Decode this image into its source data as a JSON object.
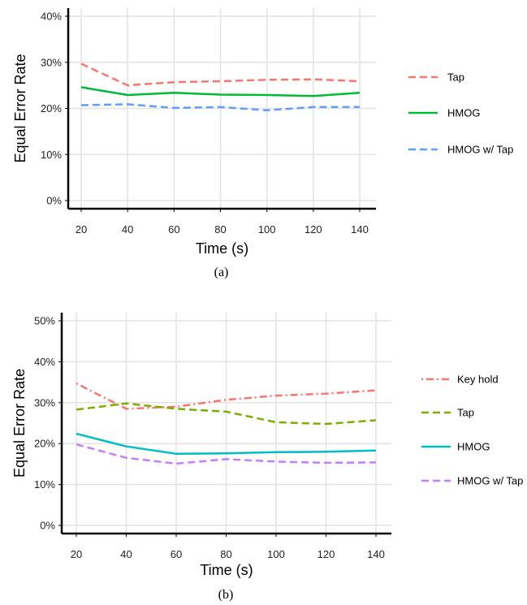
{
  "chart_data": [
    {
      "type": "line",
      "caption": "(a)",
      "xlabel": "Time (s)",
      "ylabel": "Equal Error Rate",
      "x": [
        20,
        40,
        60,
        80,
        100,
        120,
        140
      ],
      "ylim": [
        0,
        40
      ],
      "yticks": [
        "0%",
        "10%",
        "20%",
        "30%",
        "40%"
      ],
      "grid": true,
      "legend_position": "right",
      "series": [
        {
          "name": "Tap",
          "color": "#F8766D",
          "dash": "dashed",
          "values": [
            29.7,
            25.0,
            25.7,
            25.9,
            26.2,
            26.3,
            25.9
          ]
        },
        {
          "name": "HMOG",
          "color": "#00BA38",
          "dash": "solid",
          "values": [
            24.6,
            22.9,
            23.4,
            23.0,
            22.9,
            22.7,
            23.4
          ]
        },
        {
          "name": "HMOG w/ Tap",
          "color": "#619CFF",
          "dash": "dashed",
          "values": [
            20.7,
            20.9,
            20.1,
            20.3,
            19.6,
            20.3,
            20.3
          ]
        }
      ]
    },
    {
      "type": "line",
      "caption": "(b)",
      "xlabel": "Time (s)",
      "ylabel": "Equal Error Rate",
      "x": [
        20,
        40,
        60,
        80,
        100,
        120,
        140
      ],
      "ylim": [
        0,
        50
      ],
      "yticks": [
        "0%",
        "10%",
        "20%",
        "30%",
        "40%",
        "50%"
      ],
      "grid": true,
      "legend_position": "right",
      "series": [
        {
          "name": "Key hold",
          "color": "#F8766D",
          "dash": "dotdash",
          "values": [
            34.7,
            28.5,
            29.0,
            30.7,
            31.7,
            32.2,
            33.0
          ]
        },
        {
          "name": "Tap",
          "color": "#7CAE00",
          "dash": "dashed",
          "values": [
            28.3,
            29.8,
            28.5,
            27.8,
            25.2,
            24.8,
            25.7
          ]
        },
        {
          "name": "HMOG",
          "color": "#00BFC4",
          "dash": "solid",
          "values": [
            22.4,
            19.3,
            17.5,
            17.6,
            17.9,
            18.0,
            18.3
          ]
        },
        {
          "name": "HMOG w/ Tap",
          "color": "#C77CFF",
          "dash": "dashed",
          "values": [
            19.8,
            16.5,
            15.1,
            16.2,
            15.6,
            15.3,
            15.4
          ]
        }
      ]
    }
  ]
}
